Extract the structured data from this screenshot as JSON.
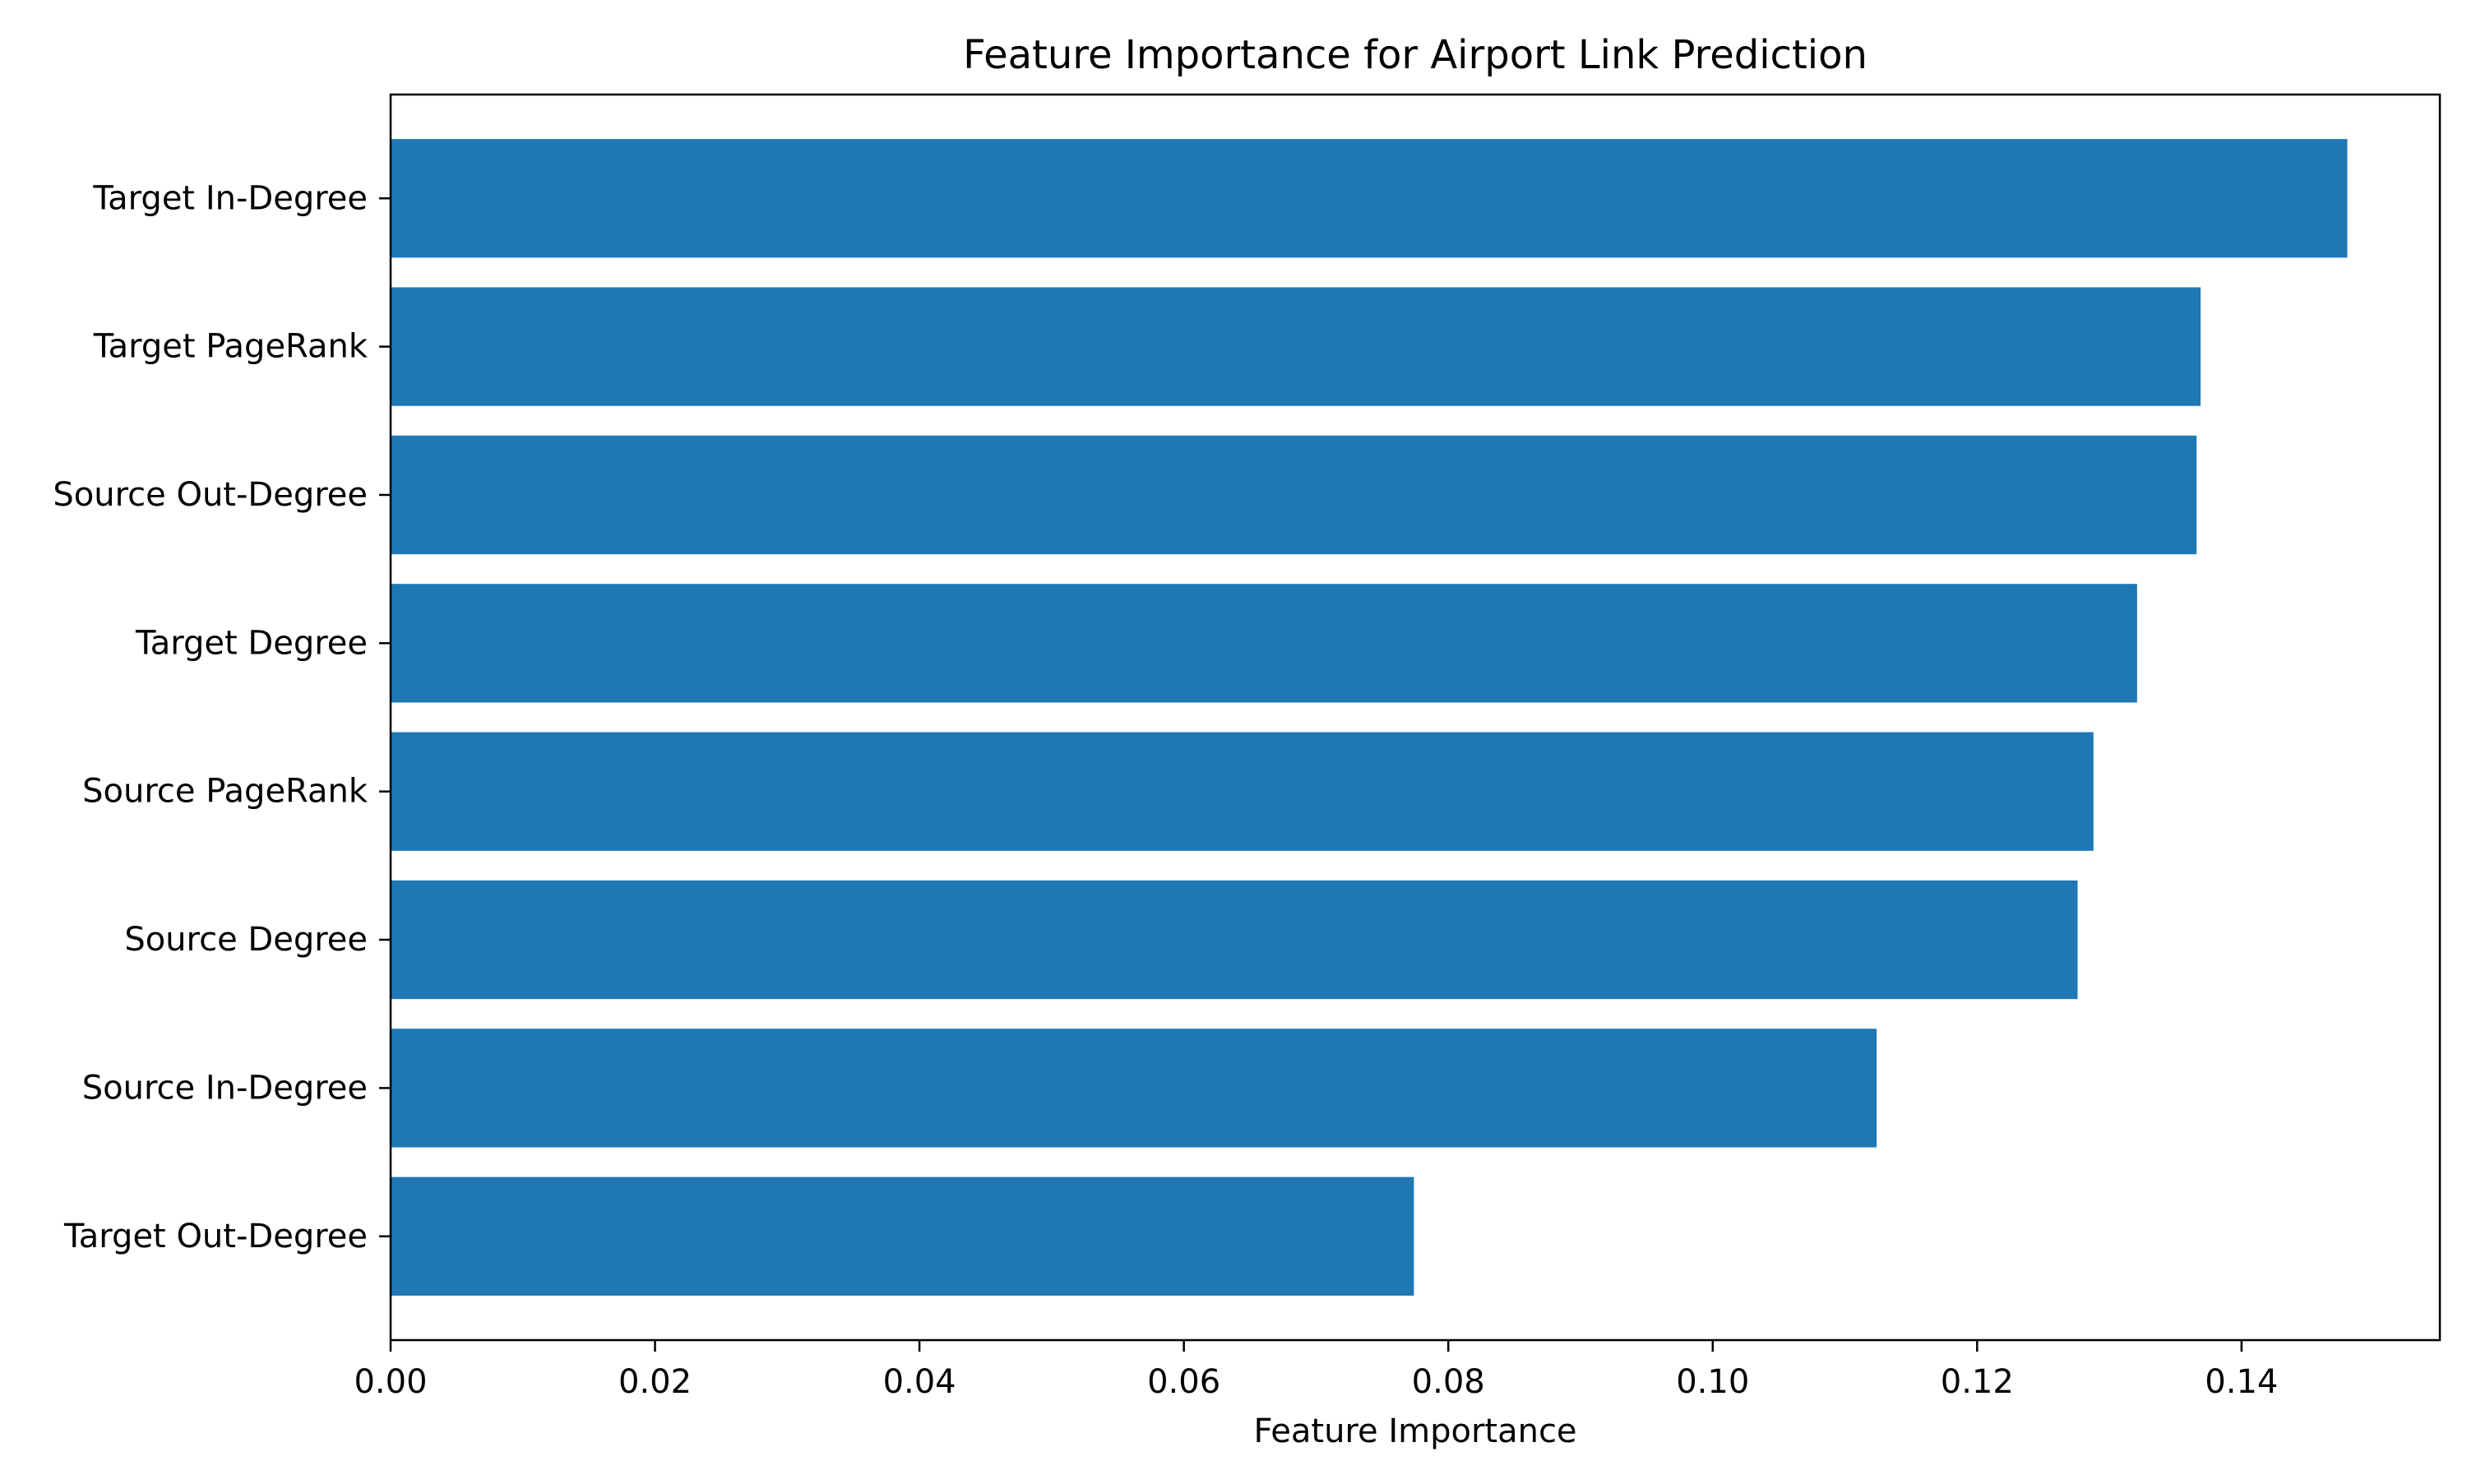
{
  "chart_data": {
    "type": "bar",
    "orientation": "horizontal",
    "title": "Feature Importance for Airport Link Prediction",
    "xlabel": "Feature Importance",
    "ylabel": "",
    "xlim": [
      0,
      0.155
    ],
    "xticks": [
      0.0,
      0.02,
      0.04,
      0.06,
      0.08,
      0.1,
      0.12,
      0.14
    ],
    "xtick_labels": [
      "0.00",
      "0.02",
      "0.04",
      "0.06",
      "0.08",
      "0.10",
      "0.12",
      "0.14"
    ],
    "categories": [
      "Target In-Degree",
      "Target PageRank",
      "Source Out-Degree",
      "Target Degree",
      "Source PageRank",
      "Source Degree",
      "Source In-Degree",
      "Target Out-Degree"
    ],
    "values": [
      0.148,
      0.1369,
      0.1366,
      0.1321,
      0.1288,
      0.1276,
      0.1124,
      0.0774
    ],
    "bar_color": "#1f77b4",
    "grid": false,
    "legend": "none"
  }
}
